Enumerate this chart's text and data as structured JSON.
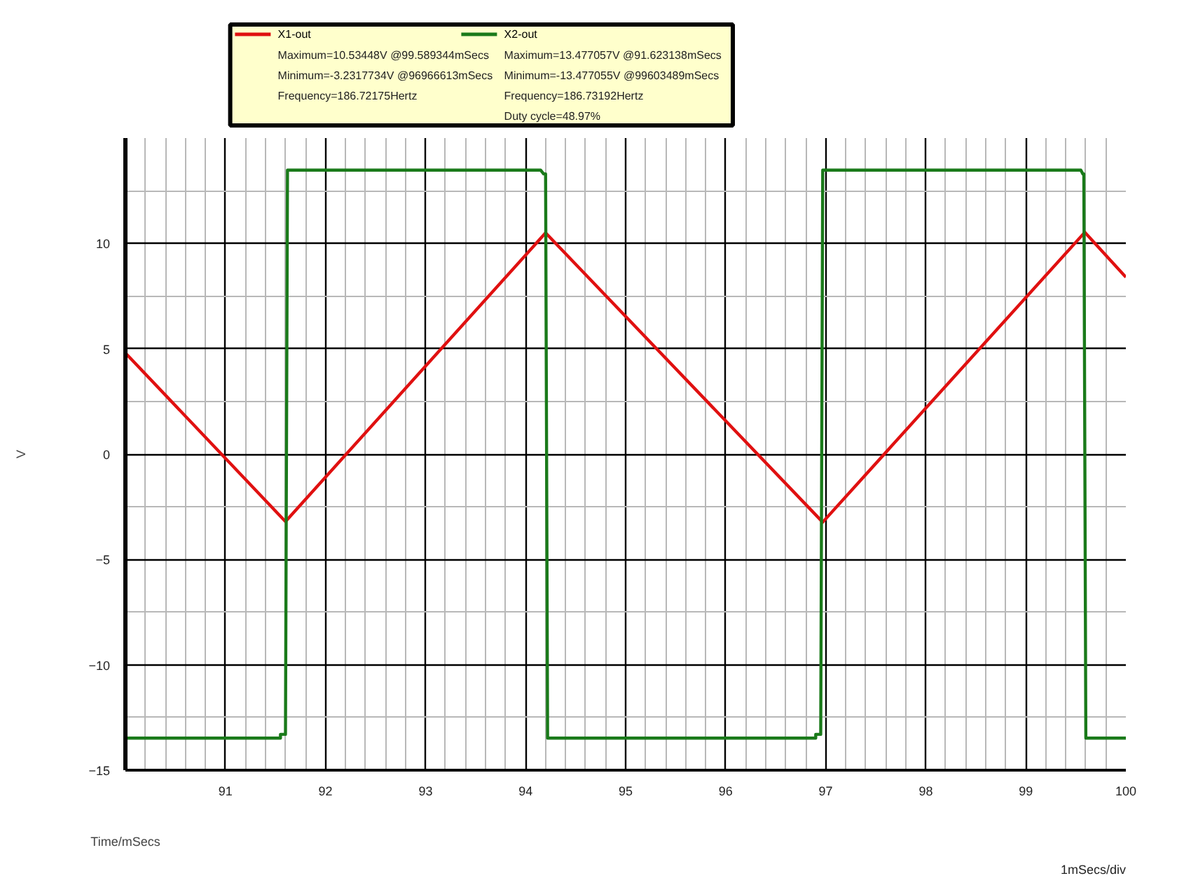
{
  "chart_data": {
    "type": "line",
    "xlabel": "Time/mSecs",
    "ylabel": "V",
    "xlim": [
      90,
      100
    ],
    "ylim": [
      -15,
      15
    ],
    "xticks": [
      91,
      92,
      93,
      94,
      95,
      96,
      97,
      98,
      99,
      100
    ],
    "yticks": [
      -15,
      -10,
      -5,
      0,
      5,
      10
    ],
    "grid": true,
    "legend": "top",
    "marker": "none",
    "line_style": "solid",
    "annotations": [
      "Maximum=10.53448V @99.589344mSecs",
      "Minimum=-3.2317734V @96966613mSecs",
      "Frequency=186.72175Hertz",
      "Maximum=13.477057V @91.623138mSecs",
      "Minimum=-13.477055V @99603489mSecs",
      "Frequency=186.73192Hertz",
      "Duty cycle=48.97%",
      "1mSecs/div"
    ],
    "series": [
      {
        "name": "X1-out",
        "color": "#e01010",
        "x": [
          90,
          91.6,
          94.2,
          96.97,
          99.59,
          100
        ],
        "values": [
          4.8,
          -3.2,
          10.5,
          -3.23,
          10.53,
          8.4
        ]
      },
      {
        "name": "X2-out",
        "color": "#1a7a1a",
        "x": [
          90,
          91.55,
          91.55,
          91.6,
          91.62,
          94.15,
          94.18,
          94.2,
          94.22,
          96.9,
          96.9,
          96.95,
          96.97,
          99.55,
          99.57,
          99.58,
          99.6,
          100
        ],
        "values": [
          -13.48,
          -13.48,
          -13.3,
          -13.3,
          13.48,
          13.48,
          13.3,
          13.3,
          -13.48,
          -13.48,
          -13.3,
          -13.3,
          13.48,
          13.48,
          13.3,
          13.3,
          -13.48,
          -13.48
        ]
      }
    ]
  }
}
